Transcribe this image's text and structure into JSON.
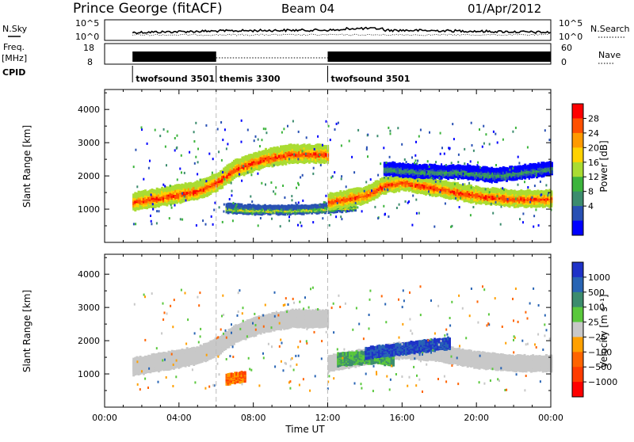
{
  "header": {
    "station": "Prince George (fitACF)",
    "beam": "Beam 04",
    "date": "01/Apr/2012"
  },
  "summary_panels": {
    "nsky": {
      "label": "N.Sky",
      "ticks": [
        "10^5",
        "10^0"
      ]
    },
    "nsearch": {
      "label": "N.Search",
      "ticks": [
        "10^5",
        "10^0"
      ]
    },
    "freq": {
      "label_line1": "Freq.",
      "label_line2": "[MHz]",
      "ticks": [
        "18",
        "8"
      ]
    },
    "nave": {
      "label": "Nave",
      "ticks": [
        "60",
        "0"
      ]
    },
    "cpid": {
      "label": "CPID"
    }
  },
  "cpid_segments": [
    {
      "label": "twofsound 3501",
      "start_hour": 1.5,
      "end_hour": 6.0
    },
    {
      "label": "themis 3300",
      "start_hour": 6.0,
      "end_hour": 12.0
    },
    {
      "label": "twofsound 3501",
      "start_hour": 12.0,
      "end_hour": 24.0
    }
  ],
  "time_axis": {
    "title": "Time UT",
    "ticks": [
      "00:00",
      "04:00",
      "08:00",
      "12:00",
      "16:00",
      "20:00",
      "00:00"
    ],
    "range_hours": [
      0,
      24
    ]
  },
  "power_colorbar": {
    "title": "Power [dB]",
    "ticks": [
      "28",
      "24",
      "20",
      "16",
      "12",
      "8",
      "4"
    ],
    "colors": [
      "#ff0000",
      "#ff5000",
      "#ff9a00",
      "#ffd200",
      "#aadc32",
      "#3cb43c",
      "#3c8c6e",
      "#2850b4",
      "#0000ff"
    ]
  },
  "velocity_colorbar": {
    "title": "Velocity [m s⁻¹]",
    "ticks": [
      "1000",
      "500",
      "100",
      "25",
      "−25",
      "−100",
      "−500",
      "−1000"
    ],
    "colors": [
      "#1e32c8",
      "#2864b4",
      "#3c8c6e",
      "#5ac83c",
      "#c8c8c8",
      "#ffa000",
      "#ff6400",
      "#ff3c00",
      "#ff0000"
    ]
  },
  "chart_data": [
    {
      "type": "heatmap",
      "panel": "power",
      "ylabel": "Slant Range [km]",
      "yticks": [
        1000,
        2000,
        3000,
        4000
      ],
      "ylim": [
        0,
        4600
      ],
      "xlim_hours": [
        0,
        24
      ],
      "bands": [
        {
          "t": [
            1.5,
            3.0,
            5.0,
            6.0,
            7.0,
            8.5,
            10.0,
            12.0
          ],
          "r_center": [
            1300,
            1450,
            1650,
            1900,
            2300,
            2600,
            2750,
            2750
          ],
          "width": 500,
          "level": "high"
        },
        {
          "t": [
            6.5,
            8.0,
            10.0,
            12.0,
            13.5
          ],
          "r_center": [
            1100,
            1050,
            1050,
            1100,
            1150
          ],
          "width": 200,
          "level": "mid"
        },
        {
          "t": [
            12.0,
            13.0,
            14.0,
            15.0,
            16.0,
            18.0,
            20.0,
            22.0,
            24.0
          ],
          "r_center": [
            1300,
            1400,
            1500,
            1800,
            1900,
            1700,
            1500,
            1400,
            1400
          ],
          "width": 450,
          "level": "high"
        },
        {
          "t": [
            15.0,
            17.0,
            19.0,
            21.0,
            24.0
          ],
          "r_center": [
            2300,
            2200,
            2200,
            2100,
            2300
          ],
          "width": 350,
          "level": "low"
        }
      ]
    },
    {
      "type": "heatmap",
      "panel": "velocity",
      "ylabel": "Slant Range [km]",
      "yticks": [
        1000,
        2000,
        3000,
        4000
      ],
      "ylim": [
        0,
        4600
      ],
      "xlim_hours": [
        0,
        24
      ],
      "features": [
        {
          "t": [
            1.5,
            3.0,
            5.0,
            6.0,
            7.0,
            8.5,
            10.0,
            12.0
          ],
          "r_center": [
            1300,
            1450,
            1650,
            1900,
            2300,
            2600,
            2750,
            2750
          ],
          "width": 500,
          "velocity": "ground-scatter"
        },
        {
          "t": [
            12.0,
            14.0,
            16.0,
            18.0,
            20.0,
            22.0,
            24.0
          ],
          "r_center": [
            1400,
            1600,
            1800,
            1700,
            1500,
            1400,
            1400
          ],
          "width": 450,
          "velocity": "ground-scatter"
        },
        {
          "t": [
            12.5,
            13.5,
            14.5,
            15.5
          ],
          "r_center": [
            1500,
            1550,
            1600,
            1500
          ],
          "width": 350,
          "velocity": "positive-100"
        },
        {
          "t": [
            14.0,
            15.5,
            17.0,
            18.5
          ],
          "r_center": [
            1700,
            1800,
            1900,
            2000
          ],
          "width": 300,
          "velocity": "positive-500"
        },
        {
          "t": [
            6.5,
            7.5
          ],
          "r_center": [
            900,
            1000
          ],
          "width": 250,
          "velocity": "negative-500"
        }
      ]
    }
  ]
}
